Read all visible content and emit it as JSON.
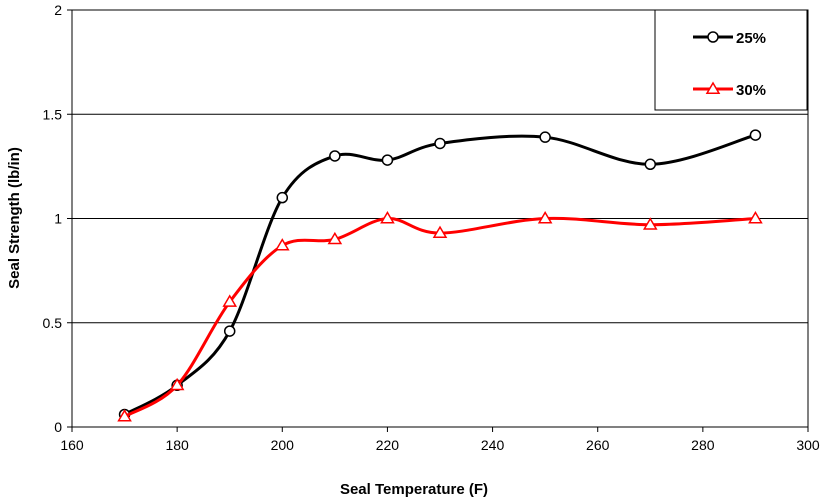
{
  "chart_data": {
    "type": "line",
    "title": "",
    "xlabel": "Seal Temperature (F)",
    "ylabel": "Seal Strength (lb/in)",
    "xlim": [
      160,
      300
    ],
    "ylim": [
      0,
      2
    ],
    "x_ticks": [
      160,
      180,
      200,
      220,
      240,
      260,
      280,
      300
    ],
    "x_tick_labels": [
      "160",
      "180",
      "200",
      "220",
      "240",
      "260",
      "280",
      "300"
    ],
    "y_ticks": [
      0,
      0.5,
      1,
      1.5,
      2
    ],
    "y_tick_labels": [
      "0",
      "0.5",
      "1",
      "1.5",
      "2"
    ],
    "grid": "horizontal",
    "legend_position": "top-right",
    "series": [
      {
        "name": "25%",
        "color": "#000000",
        "marker": "circle",
        "x": [
          170,
          180,
          190,
          200,
          210,
          220,
          230,
          250,
          270,
          290
        ],
        "values": [
          0.06,
          0.2,
          0.46,
          1.1,
          1.3,
          1.28,
          1.36,
          1.39,
          1.26,
          1.4
        ]
      },
      {
        "name": "30%",
        "color": "#ff0000",
        "marker": "triangle",
        "x": [
          170,
          180,
          190,
          200,
          210,
          220,
          230,
          250,
          270,
          290
        ],
        "values": [
          0.05,
          0.2,
          0.6,
          0.87,
          0.9,
          1.0,
          0.93,
          1.0,
          0.97,
          1.0
        ]
      }
    ]
  }
}
